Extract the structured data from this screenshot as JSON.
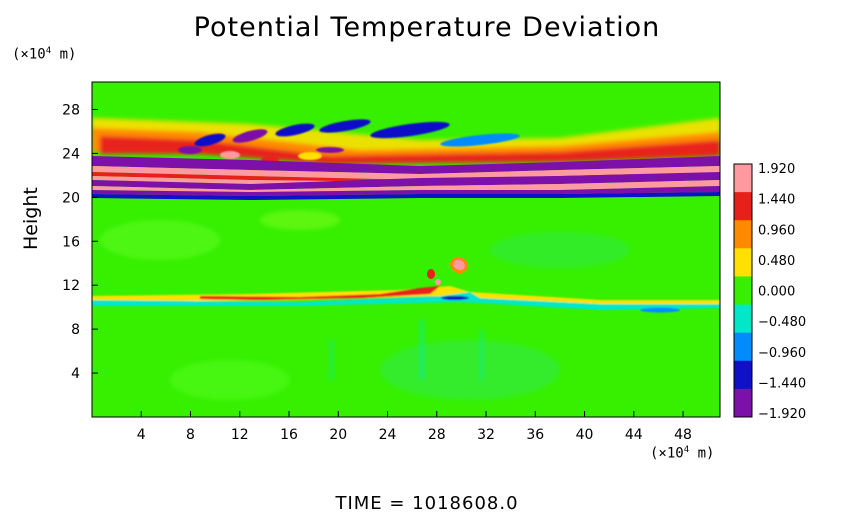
{
  "chart_data": {
    "type": "heatmap",
    "title": "Potential Temperature Deviation",
    "ylabel": "Height",
    "y_unit_prefix": "(×10",
    "x_unit_prefix": "(×10",
    "unit_exponent": "4",
    "unit_suffix": " m)",
    "footer": "TIME  =  1018608.0",
    "x_ticks": [
      "4",
      "8",
      "12",
      "16",
      "20",
      "24",
      "28",
      "32",
      "36",
      "40",
      "44",
      "48"
    ],
    "x_tick_values": [
      4,
      8,
      12,
      16,
      20,
      24,
      28,
      32,
      36,
      40,
      44,
      48
    ],
    "xlim": [
      0,
      51
    ],
    "y_ticks": [
      "4",
      "8",
      "12",
      "16",
      "20",
      "24",
      "28"
    ],
    "y_tick_values": [
      4,
      8,
      12,
      16,
      20,
      24,
      28
    ],
    "ylim": [
      0,
      30.5
    ],
    "colorbar_labels": [
      "1.920",
      "1.440",
      "0.960",
      "0.480",
      "0.000",
      "−0.480",
      "−0.960",
      "−1.440",
      "−1.920"
    ],
    "colorbar_values": [
      1.92,
      1.44,
      0.96,
      0.48,
      0.0,
      -0.48,
      -0.96,
      -1.44,
      -1.92
    ],
    "colorbar_colors": [
      "#ff9aa0",
      "#e8201c",
      "#ff8a00",
      "#ffe000",
      "#36f000",
      "#00e8c8",
      "#008cff",
      "#1010c8",
      "#7c10a8"
    ],
    "background_color": "#36f000"
  }
}
